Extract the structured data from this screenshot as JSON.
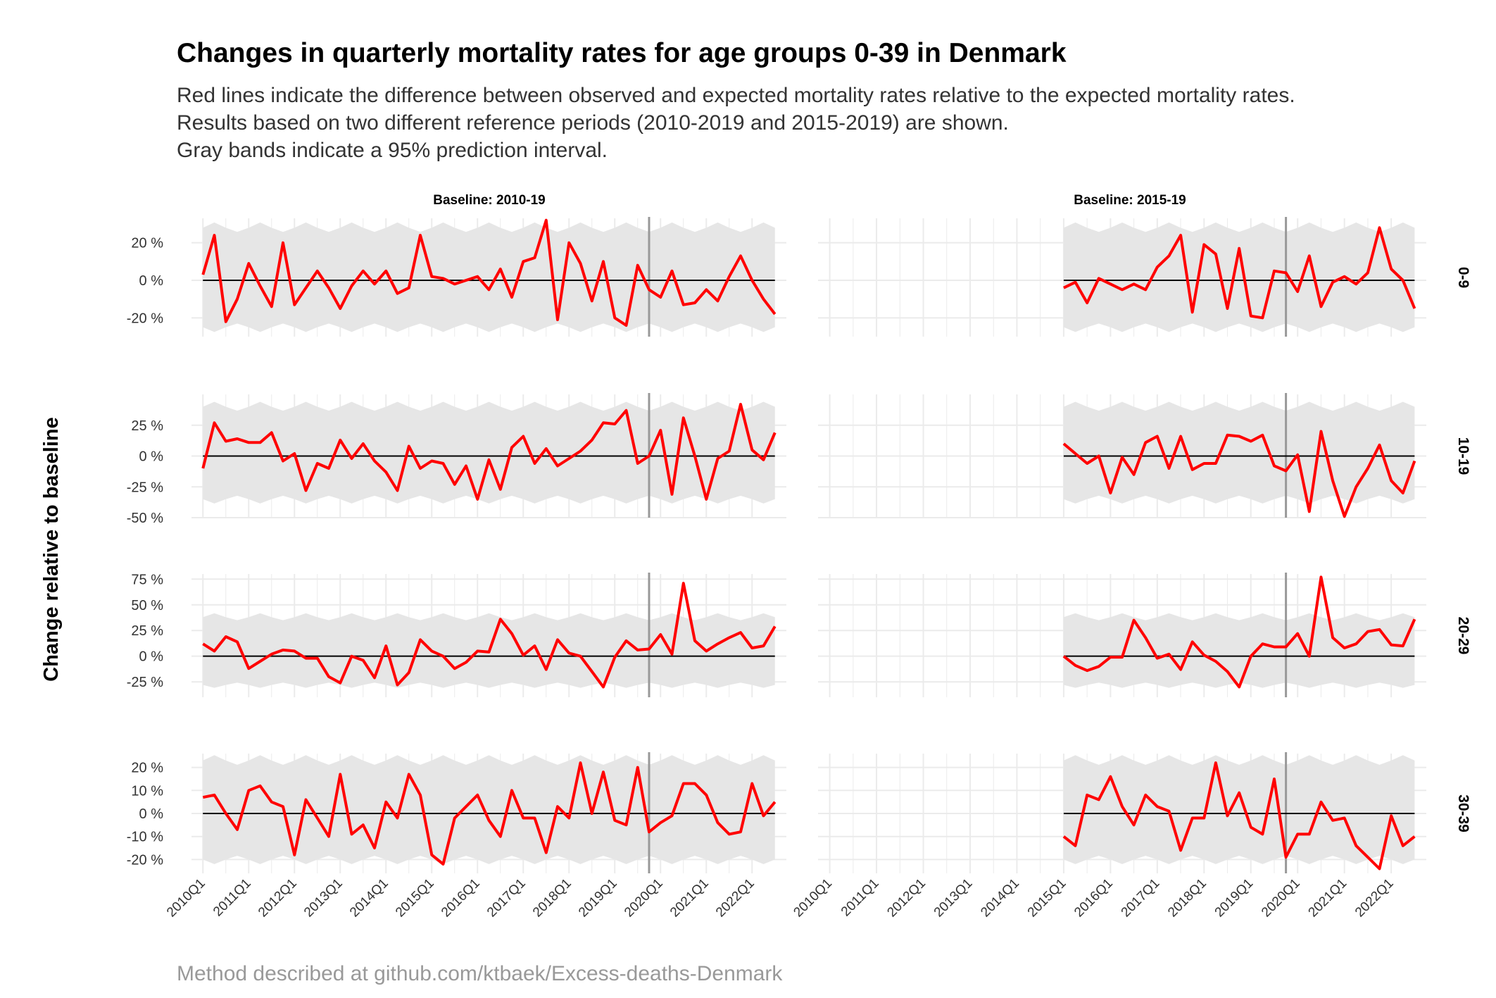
{
  "title": "Changes in quarterly mortality rates for age groups 0-39 in Denmark",
  "subtitle_lines": [
    "Red lines indicate the difference between observed and expected mortality rates relative to the expected mortality rates.",
    "Results based on two different reference periods (2010-2019 and 2015-2019) are shown.",
    "Gray bands indicate a 95% prediction interval."
  ],
  "caption": "Method described at github.com/ktbaek/Excess-deaths-Denmark",
  "ylabel": "Change relative to baseline",
  "colors": {
    "line": "#ff0000",
    "band": "#e6e6e6",
    "grid": "#ebebeb",
    "vline": "#999999",
    "zero": "#000000"
  },
  "chart_data": {
    "type": "line",
    "quarters": [
      "2010Q1",
      "2010Q2",
      "2010Q3",
      "2010Q4",
      "2011Q1",
      "2011Q2",
      "2011Q3",
      "2011Q4",
      "2012Q1",
      "2012Q2",
      "2012Q3",
      "2012Q4",
      "2013Q1",
      "2013Q2",
      "2013Q3",
      "2013Q4",
      "2014Q1",
      "2014Q2",
      "2014Q3",
      "2014Q4",
      "2015Q1",
      "2015Q2",
      "2015Q3",
      "2015Q4",
      "2016Q1",
      "2016Q2",
      "2016Q3",
      "2016Q4",
      "2017Q1",
      "2017Q2",
      "2017Q3",
      "2017Q4",
      "2018Q1",
      "2018Q2",
      "2018Q3",
      "2018Q4",
      "2019Q1",
      "2019Q2",
      "2019Q3",
      "2019Q4",
      "2020Q1",
      "2020Q2",
      "2020Q3",
      "2020Q4",
      "2021Q1",
      "2021Q2",
      "2021Q3",
      "2021Q4",
      "2022Q1",
      "2022Q2",
      "2022Q3"
    ],
    "x_tick_labels": [
      "2010Q1",
      "2011Q1",
      "2012Q1",
      "2013Q1",
      "2014Q1",
      "2015Q1",
      "2016Q1",
      "2017Q1",
      "2018Q1",
      "2019Q1",
      "2020Q1",
      "2021Q1",
      "2022Q1"
    ],
    "reference_line": "2019Q4",
    "columns": [
      {
        "strip": "Baseline: 2010-19",
        "start_index": 0
      },
      {
        "strip": "Baseline: 2015-19",
        "start_index": 20
      }
    ],
    "rows": [
      {
        "label": "0-9",
        "ylim": [
          -30,
          33
        ],
        "yticks": [
          20,
          0,
          -20
        ],
        "ytick_labels": [
          "20 %",
          "0 %",
          "-20 %"
        ],
        "band_low": -25,
        "band_high": 28,
        "baseline_2010_19": [
          3,
          24,
          -22,
          -10,
          9,
          -3,
          -14,
          20,
          -13,
          -4,
          5,
          -4,
          -15,
          -3,
          5,
          -2,
          5,
          -7,
          -4,
          24,
          2,
          1,
          -2,
          0,
          2,
          -5,
          6,
          -9,
          10,
          12,
          32,
          -21,
          20,
          9,
          -11,
          10,
          -20,
          -24,
          8,
          -5,
          -9,
          5,
          -13,
          -12,
          -5,
          -11,
          2,
          13,
          0,
          -10,
          -18
        ],
        "baseline_2015_19": [
          -4,
          -1,
          -12,
          1,
          -2,
          -5,
          -2,
          -5,
          7,
          13,
          24,
          -17,
          19,
          14,
          -15,
          17,
          -19,
          -20,
          5,
          4,
          -6,
          13,
          -14,
          -1,
          2,
          -2,
          4,
          28,
          6,
          0,
          -15
        ]
      },
      {
        "label": "10-19",
        "ylim": [
          -50,
          50
        ],
        "yticks": [
          25,
          0,
          -25,
          -50
        ],
        "ytick_labels": [
          "25 %",
          "0 %",
          "-25 %",
          "-50 %"
        ],
        "band_low": -35,
        "band_high": 40,
        "baseline_2010_19": [
          -10,
          27,
          12,
          14,
          11,
          11,
          19,
          -4,
          2,
          -28,
          -6,
          -10,
          13,
          -2,
          10,
          -4,
          -13,
          -28,
          8,
          -10,
          -4,
          -6,
          -23,
          -8,
          -35,
          -3,
          -27,
          7,
          16,
          -6,
          6,
          -8,
          -2,
          4,
          13,
          27,
          26,
          37,
          -6,
          0,
          21,
          -31,
          31,
          0,
          -35,
          -2,
          4,
          42,
          5,
          -3,
          19
        ],
        "baseline_2015_19": [
          10,
          2,
          -6,
          0,
          -30,
          -1,
          -15,
          11,
          16,
          -10,
          16,
          -11,
          -6,
          -6,
          17,
          16,
          12,
          17,
          -8,
          -12,
          1,
          -45,
          20,
          -20,
          -49,
          -25,
          -10,
          9,
          -20,
          -30,
          -4
        ]
      },
      {
        "label": "20-29",
        "ylim": [
          -40,
          80
        ],
        "yticks": [
          75,
          50,
          25,
          0,
          -25
        ],
        "ytick_labels": [
          "75 %",
          "50 %",
          "25 %",
          "0 %",
          "-25 %"
        ],
        "band_low": -28,
        "band_high": 38,
        "baseline_2010_19": [
          12,
          5,
          19,
          14,
          -12,
          -5,
          2,
          6,
          5,
          -2,
          -2,
          -20,
          -26,
          0,
          -4,
          -21,
          10,
          -28,
          -16,
          16,
          5,
          0,
          -12,
          -6,
          5,
          4,
          36,
          22,
          1,
          10,
          -13,
          16,
          3,
          0,
          -15,
          -30,
          -1,
          15,
          6,
          7,
          21,
          2,
          71,
          15,
          5,
          12,
          18,
          23,
          8,
          10,
          29
        ],
        "baseline_2015_19": [
          0,
          -9,
          -14,
          -10,
          -1,
          -1,
          35,
          18,
          -2,
          2,
          -13,
          14,
          1,
          -5,
          -15,
          -30,
          0,
          12,
          9,
          9,
          22,
          0,
          77,
          18,
          8,
          12,
          24,
          26,
          11,
          10,
          36
        ]
      },
      {
        "label": "30-39",
        "ylim": [
          -26,
          26
        ],
        "yticks": [
          20,
          10,
          0,
          -10,
          -20
        ],
        "ytick_labels": [
          "20 %",
          "10 %",
          "0 %",
          "-10 %",
          "-20 %"
        ],
        "band_low": -20,
        "band_high": 23,
        "baseline_2010_19": [
          7,
          8,
          0,
          -7,
          10,
          12,
          5,
          3,
          -18,
          6,
          -2,
          -10,
          17,
          -9,
          -5,
          -15,
          5,
          -2,
          17,
          8,
          -18,
          -22,
          -2,
          3,
          8,
          -3,
          -10,
          10,
          -2,
          -2,
          -17,
          3,
          -2,
          22,
          0,
          18,
          -3,
          -5,
          20,
          -8,
          -4,
          -1,
          13,
          13,
          8,
          -4,
          -9,
          -8,
          13,
          -1,
          5
        ],
        "baseline_2015_19": [
          -10,
          -14,
          8,
          6,
          16,
          3,
          -5,
          8,
          3,
          1,
          -16,
          -2,
          -2,
          22,
          -1,
          9,
          -6,
          -9,
          15,
          -19,
          -9,
          -9,
          5,
          -3,
          -2,
          -14,
          -19,
          -24,
          -1,
          -14,
          -10
        ]
      }
    ]
  }
}
